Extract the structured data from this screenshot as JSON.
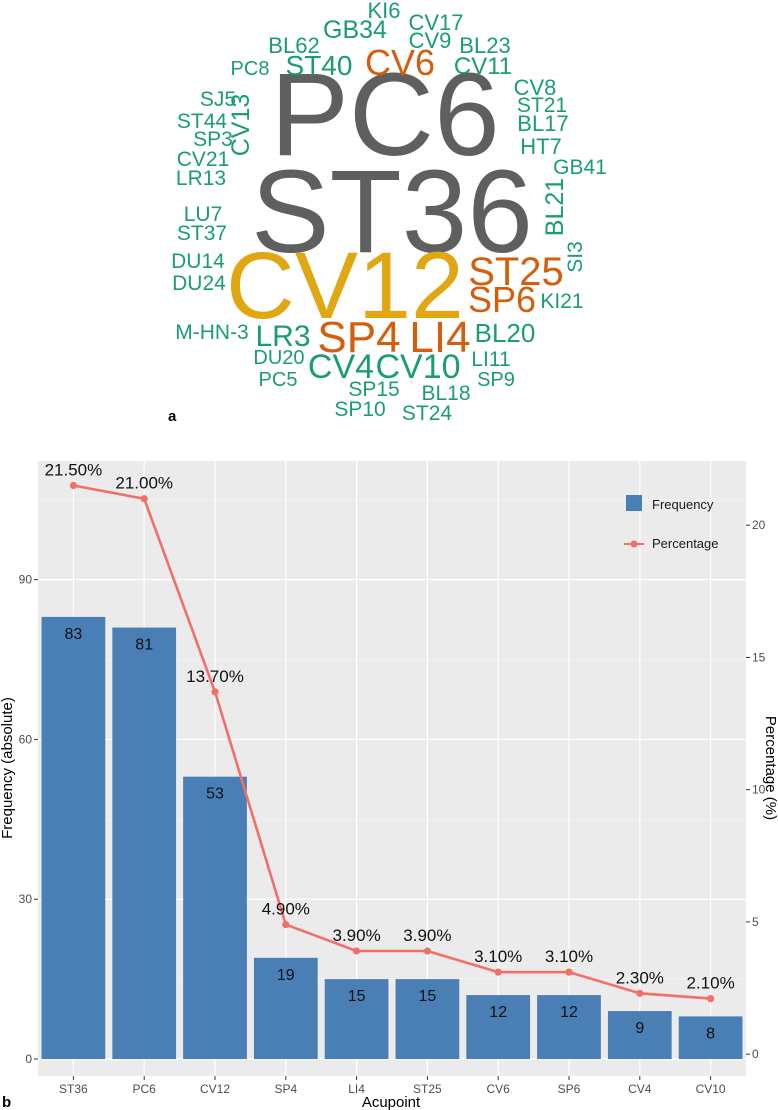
{
  "wordcloud": {
    "panel_label": "a",
    "colors": {
      "dark": "#5f5f5f",
      "gold": "#e0a713",
      "orange": "#d55e0d",
      "green": "#1a9c77"
    },
    "words": [
      {
        "text": "PC6",
        "color": "dark"
      },
      {
        "text": "ST36",
        "color": "dark"
      },
      {
        "text": "CV12",
        "color": "gold"
      },
      {
        "text": "SP4",
        "color": "orange"
      },
      {
        "text": "LI4",
        "color": "orange"
      },
      {
        "text": "ST25",
        "color": "orange"
      },
      {
        "text": "SP6",
        "color": "orange"
      },
      {
        "text": "CV6",
        "color": "orange"
      },
      {
        "text": "KI6",
        "color": "green"
      },
      {
        "text": "CV17",
        "color": "green"
      },
      {
        "text": "GB34",
        "color": "green"
      },
      {
        "text": "CV9",
        "color": "green"
      },
      {
        "text": "BL23",
        "color": "green"
      },
      {
        "text": "BL62",
        "color": "green"
      },
      {
        "text": "PC8",
        "color": "green"
      },
      {
        "text": "ST40",
        "color": "green"
      },
      {
        "text": "CV11",
        "color": "green"
      },
      {
        "text": "SJ5",
        "color": "green"
      },
      {
        "text": "CV8",
        "color": "green"
      },
      {
        "text": "ST21",
        "color": "green"
      },
      {
        "text": "ST44",
        "color": "green"
      },
      {
        "text": "CV13",
        "color": "green"
      },
      {
        "text": "BL17",
        "color": "green"
      },
      {
        "text": "SP3",
        "color": "green"
      },
      {
        "text": "HT7",
        "color": "green"
      },
      {
        "text": "CV21",
        "color": "green"
      },
      {
        "text": "GB41",
        "color": "green"
      },
      {
        "text": "LR13",
        "color": "green"
      },
      {
        "text": "BL21",
        "color": "green"
      },
      {
        "text": "LU7",
        "color": "green"
      },
      {
        "text": "ST37",
        "color": "green"
      },
      {
        "text": "SI3",
        "color": "green"
      },
      {
        "text": "DU14",
        "color": "green"
      },
      {
        "text": "DU24",
        "color": "green"
      },
      {
        "text": "KI21",
        "color": "green"
      },
      {
        "text": "M-HN-3",
        "color": "green"
      },
      {
        "text": "LR3",
        "color": "green"
      },
      {
        "text": "BL20",
        "color": "green"
      },
      {
        "text": "DU20",
        "color": "green"
      },
      {
        "text": "LI11",
        "color": "green"
      },
      {
        "text": "CV4",
        "color": "green"
      },
      {
        "text": "CV10",
        "color": "green"
      },
      {
        "text": "PC5",
        "color": "green"
      },
      {
        "text": "SP9",
        "color": "green"
      },
      {
        "text": "SP15",
        "color": "green"
      },
      {
        "text": "BL18",
        "color": "green"
      },
      {
        "text": "SP10",
        "color": "green"
      },
      {
        "text": "ST24",
        "color": "green"
      }
    ]
  },
  "chart_data": {
    "type": "bar",
    "panel_label": "b",
    "title": "",
    "xlabel": "Acupoint",
    "ylabel": "Frequency (absolute)",
    "y2label": "Percentage (%)",
    "categories": [
      "ST36",
      "PC6",
      "CV12",
      "SP4",
      "LI4",
      "ST25",
      "CV6",
      "SP6",
      "CV4",
      "CV10"
    ],
    "series": [
      {
        "name": "Frequency",
        "type": "bar",
        "color": "#4a7fb5",
        "values": [
          83,
          81,
          53,
          19,
          15,
          15,
          12,
          12,
          9,
          8
        ]
      },
      {
        "name": "Percentage",
        "type": "line",
        "axis": "right",
        "color": "#f07068",
        "values": [
          21.5,
          21.0,
          13.7,
          4.9,
          3.9,
          3.9,
          3.1,
          3.1,
          2.3,
          2.1
        ],
        "labels": [
          "21.50%",
          "21.00%",
          "13.70%",
          "4.90%",
          "3.90%",
          "3.90%",
          "3.10%",
          "3.10%",
          "2.30%",
          "2.10%"
        ]
      }
    ],
    "ylim": [
      -3.19,
      112.27
    ],
    "y2lim": [
      -0.8265,
      22.4265
    ],
    "yticks": [
      0,
      30,
      60,
      90
    ],
    "y2ticks": [
      0,
      5,
      10,
      15,
      20
    ],
    "grid": true,
    "legend": "top-right",
    "panel_background": "#ebebeb"
  }
}
